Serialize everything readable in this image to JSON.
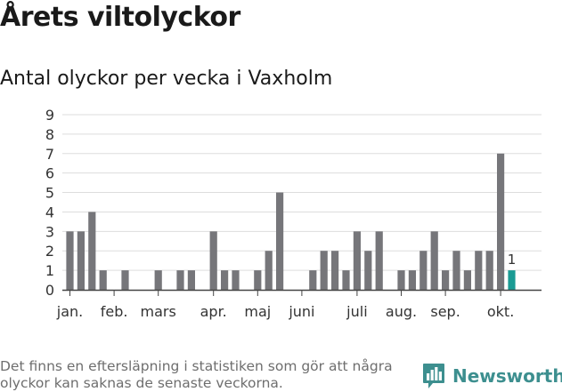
{
  "title": "Årets viltolyckor",
  "subtitle": "Antal olyckor per vecka i Vaxholm",
  "footnote": "Det finns en eftersläpning i statistiken som gör att några olyckor kan saknas de senaste veckorna.",
  "brand": {
    "name": "Newsworthy",
    "icon": "bar-chart-speech-bubble-icon",
    "color": "#3d8f8f"
  },
  "chart_data": {
    "type": "bar",
    "title": "Antal olyckor per vecka i Vaxholm",
    "xlabel": "",
    "ylabel": "",
    "ylim": [
      0,
      9
    ],
    "yticks": [
      0,
      1,
      2,
      3,
      4,
      5,
      6,
      7,
      8,
      9
    ],
    "grid": true,
    "x_month_labels": [
      {
        "label": "jan.",
        "week": 1
      },
      {
        "label": "feb.",
        "week": 5
      },
      {
        "label": "mars",
        "week": 9
      },
      {
        "label": "apr.",
        "week": 14
      },
      {
        "label": "maj",
        "week": 18
      },
      {
        "label": "juni",
        "week": 22
      },
      {
        "label": "juli",
        "week": 27
      },
      {
        "label": "aug.",
        "week": 31
      },
      {
        "label": "sep.",
        "week": 35
      },
      {
        "label": "okt.",
        "week": 40
      }
    ],
    "weeks": [
      1,
      2,
      3,
      4,
      5,
      6,
      7,
      8,
      9,
      10,
      11,
      12,
      13,
      14,
      15,
      16,
      17,
      18,
      19,
      20,
      21,
      22,
      23,
      24,
      25,
      26,
      27,
      28,
      29,
      30,
      31,
      32,
      33,
      34,
      35,
      36,
      37,
      38,
      39,
      40
    ],
    "values": [
      3,
      3,
      4,
      1,
      0,
      1,
      0,
      0,
      1,
      0,
      1,
      1,
      0,
      3,
      1,
      1,
      0,
      1,
      2,
      5,
      0,
      0,
      1,
      2,
      2,
      1,
      3,
      2,
      3,
      0,
      1,
      1,
      2,
      3,
      1,
      2,
      1,
      2,
      2,
      7
    ],
    "latest": {
      "week": 41,
      "value": 1,
      "label": "1"
    },
    "colors": {
      "bar": "#76767a",
      "latest": "#1a9b94",
      "grid": "#dddddd",
      "axis": "#444444"
    }
  }
}
